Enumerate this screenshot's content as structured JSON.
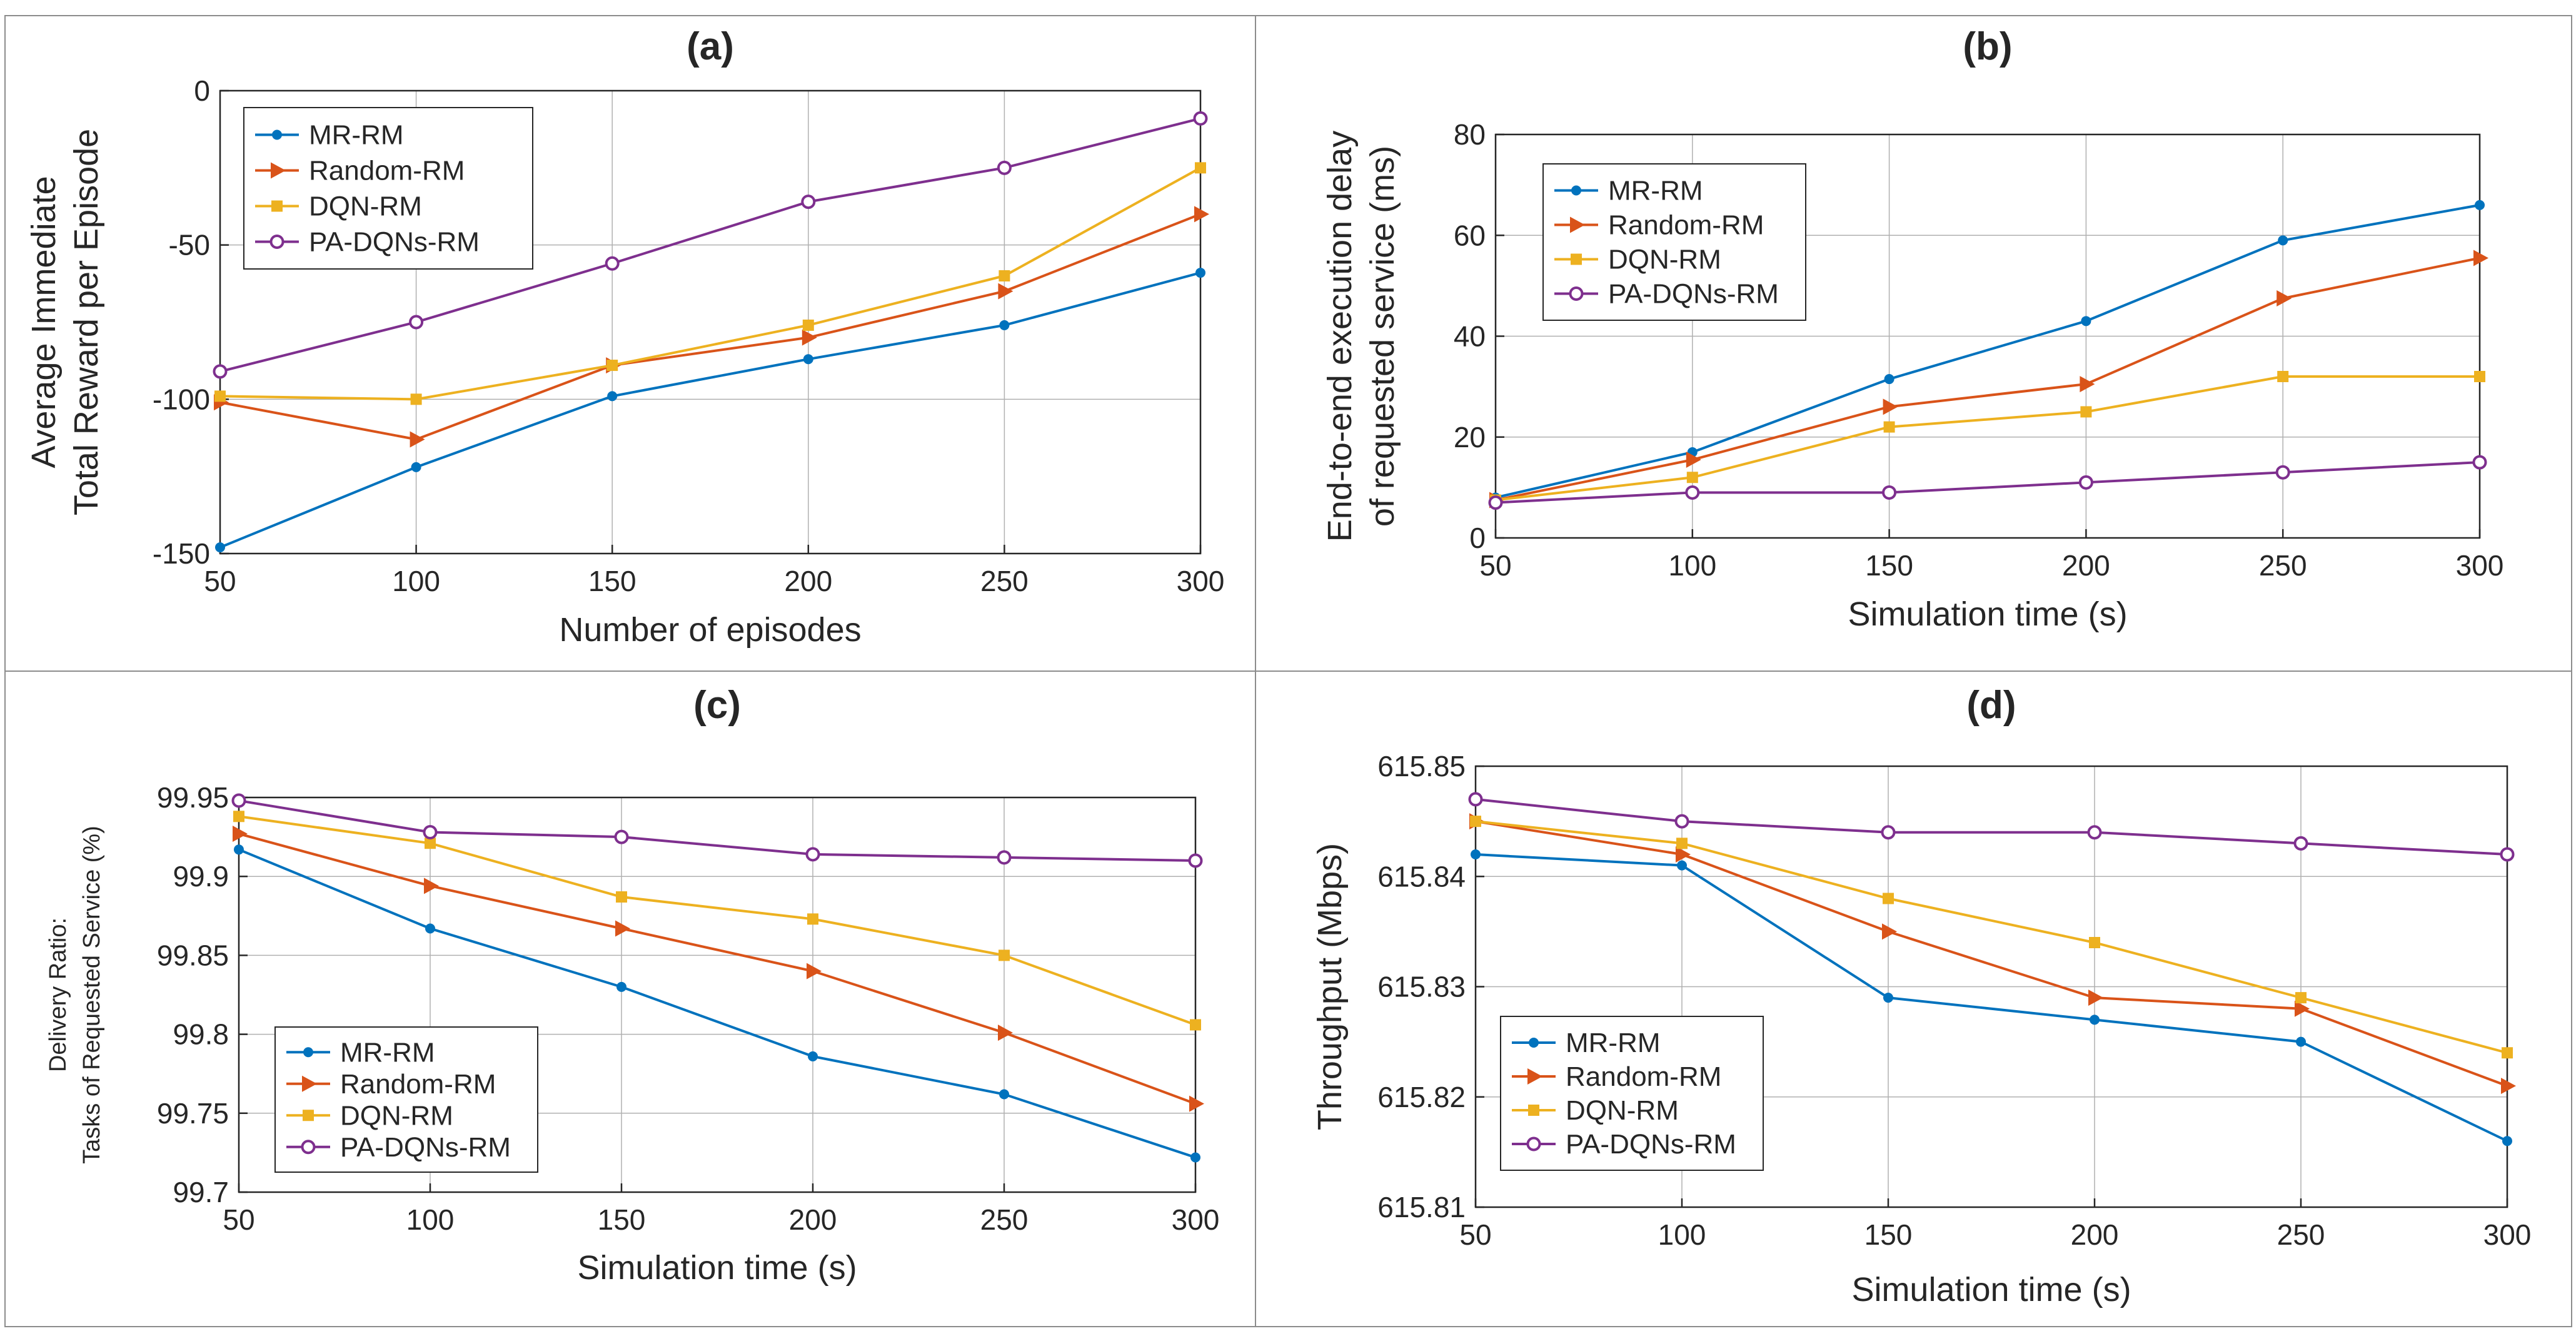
{
  "colors": {
    "MR-RM": "#0072BD",
    "Random-RM": "#D95319",
    "DQN-RM": "#EDB120",
    "PA-DQNs-RM": "#7E2F8E",
    "axis": "#262626",
    "grid": "#b0b0b0"
  },
  "chart_data": [
    {
      "id": "a",
      "type": "line",
      "title": "(a)",
      "xlabel": "Number of episodes",
      "ylabel": [
        "Average Immediate",
        "Total Reward per Episode"
      ],
      "xlim": [
        50,
        300
      ],
      "ylim": [
        -150,
        0
      ],
      "xticks": [
        50,
        100,
        150,
        200,
        250,
        300
      ],
      "yticks": [
        -150,
        -100,
        -50,
        0
      ],
      "ytick_labels": [
        "-150",
        "-100",
        "-50",
        "0"
      ],
      "legend_position": "top-left",
      "x": [
        50,
        100,
        150,
        200,
        250,
        300
      ],
      "series": [
        {
          "name": "MR-RM",
          "marker": "dot",
          "values": [
            -148,
            -122,
            -99,
            -87,
            -76,
            -59
          ]
        },
        {
          "name": "Random-RM",
          "marker": "triangle",
          "values": [
            -101,
            -113,
            -89,
            -80,
            -65,
            -40
          ]
        },
        {
          "name": "DQN-RM",
          "marker": "square",
          "values": [
            -99,
            -100,
            -89,
            -76,
            -60,
            -25
          ]
        },
        {
          "name": "PA-DQNs-RM",
          "marker": "circle",
          "values": [
            -91,
            -75,
            -56,
            -36,
            -25,
            -9
          ]
        }
      ]
    },
    {
      "id": "b",
      "type": "line",
      "title": "(b)",
      "xlabel": "Simulation time (s)",
      "ylabel": [
        "End-to-end execution delay",
        "of requested service (ms)"
      ],
      "xlim": [
        50,
        300
      ],
      "ylim": [
        0,
        80
      ],
      "xticks": [
        50,
        100,
        150,
        200,
        250,
        300
      ],
      "yticks": [
        0,
        20,
        40,
        60,
        80
      ],
      "ytick_labels": [
        "0",
        "20",
        "40",
        "60",
        "80"
      ],
      "legend_position": "top-left",
      "x": [
        50,
        100,
        150,
        200,
        250,
        300
      ],
      "series": [
        {
          "name": "MR-RM",
          "marker": "dot",
          "values": [
            8,
            17,
            31.5,
            43,
            59,
            66
          ]
        },
        {
          "name": "Random-RM",
          "marker": "triangle",
          "values": [
            7.5,
            15.5,
            26,
            30.5,
            47.5,
            55.5
          ]
        },
        {
          "name": "DQN-RM",
          "marker": "square",
          "values": [
            7.5,
            12,
            22,
            25,
            32,
            32
          ]
        },
        {
          "name": "PA-DQNs-RM",
          "marker": "circle",
          "values": [
            7,
            9,
            9,
            11,
            13,
            15
          ]
        }
      ]
    },
    {
      "id": "c",
      "type": "line",
      "title": "(c)",
      "xlabel": "Simulation time (s)",
      "ylabel": [
        "Delivery Ratio:",
        "Tasks of Requested Service (%)"
      ],
      "xlim": [
        50,
        300
      ],
      "ylim": [
        99.7,
        99.95
      ],
      "xticks": [
        50,
        100,
        150,
        200,
        250,
        300
      ],
      "yticks": [
        99.7,
        99.75,
        99.8,
        99.85,
        99.9,
        99.95
      ],
      "ytick_labels": [
        "99.7",
        "99.75",
        "99.8",
        "99.85",
        "99.9",
        "99.95"
      ],
      "legend_position": "bottom-left",
      "x": [
        50,
        100,
        150,
        200,
        250,
        300
      ],
      "series": [
        {
          "name": "MR-RM",
          "marker": "dot",
          "values": [
            99.917,
            99.867,
            99.83,
            99.786,
            99.762,
            99.722
          ]
        },
        {
          "name": "Random-RM",
          "marker": "triangle",
          "values": [
            99.927,
            99.894,
            99.867,
            99.84,
            99.801,
            99.756
          ]
        },
        {
          "name": "DQN-RM",
          "marker": "square",
          "values": [
            99.938,
            99.921,
            99.887,
            99.873,
            99.85,
            99.806
          ]
        },
        {
          "name": "PA-DQNs-RM",
          "marker": "circle",
          "values": [
            99.948,
            99.928,
            99.925,
            99.914,
            99.912,
            99.91
          ]
        }
      ]
    },
    {
      "id": "d",
      "type": "line",
      "title": "(d)",
      "xlabel": "Simulation time (s)",
      "ylabel": [
        "Throughput (Mbps)"
      ],
      "xlim": [
        50,
        300
      ],
      "ylim": [
        615.81,
        615.85
      ],
      "xticks": [
        50,
        100,
        150,
        200,
        250,
        300
      ],
      "yticks": [
        615.81,
        615.82,
        615.83,
        615.84,
        615.85
      ],
      "ytick_labels": [
        "615.81",
        "615.82",
        "615.83",
        "615.84",
        "615.85"
      ],
      "legend_position": "bottom-left",
      "x": [
        50,
        100,
        150,
        200,
        250,
        300
      ],
      "series": [
        {
          "name": "MR-RM",
          "marker": "dot",
          "values": [
            615.842,
            615.841,
            615.829,
            615.827,
            615.825,
            615.816
          ]
        },
        {
          "name": "Random-RM",
          "marker": "triangle",
          "values": [
            615.845,
            615.842,
            615.835,
            615.829,
            615.828,
            615.821
          ]
        },
        {
          "name": "DQN-RM",
          "marker": "square",
          "values": [
            615.845,
            615.843,
            615.838,
            615.834,
            615.829,
            615.824
          ]
        },
        {
          "name": "PA-DQNs-RM",
          "marker": "circle",
          "values": [
            615.847,
            615.845,
            615.844,
            615.844,
            615.843,
            615.842
          ]
        }
      ]
    }
  ]
}
